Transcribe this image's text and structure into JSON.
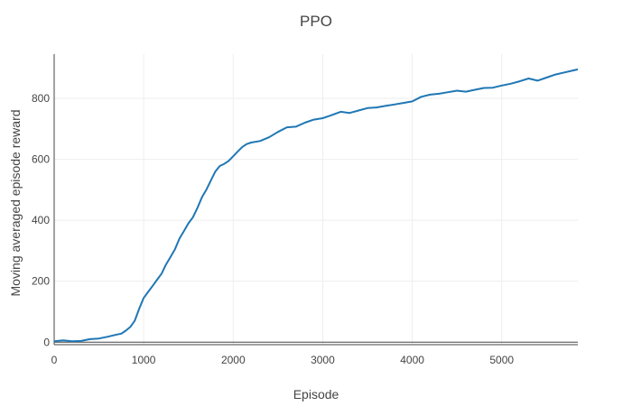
{
  "chart_data": {
    "type": "line",
    "title": "PPO",
    "xlabel": "Episode",
    "ylabel": "Moving averaged episode reward",
    "xlim": [
      0,
      5850
    ],
    "ylim": [
      -8,
      945
    ],
    "xticks": [
      0,
      1000,
      2000,
      3000,
      4000,
      5000
    ],
    "yticks": [
      0,
      200,
      400,
      600,
      800
    ],
    "grid": true,
    "legend": "none",
    "series": [
      {
        "color": "#1f77b4",
        "x": [
          0,
          100,
          200,
          300,
          400,
          500,
          600,
          700,
          750,
          800,
          850,
          900,
          950,
          1000,
          1050,
          1100,
          1150,
          1200,
          1250,
          1300,
          1350,
          1400,
          1450,
          1500,
          1550,
          1600,
          1650,
          1700,
          1750,
          1800,
          1850,
          1900,
          1950,
          2000,
          2050,
          2100,
          2150,
          2200,
          2300,
          2400,
          2500,
          2600,
          2700,
          2800,
          2900,
          3000,
          3100,
          3200,
          3300,
          3400,
          3500,
          3600,
          3700,
          3800,
          3900,
          4000,
          4100,
          4200,
          4300,
          4400,
          4500,
          4600,
          4700,
          4800,
          4900,
          5000,
          5100,
          5200,
          5300,
          5400,
          5500,
          5600,
          5700,
          5850
        ],
        "y": [
          3,
          6,
          3,
          4,
          10,
          12,
          18,
          25,
          28,
          38,
          50,
          70,
          110,
          145,
          165,
          185,
          205,
          225,
          255,
          280,
          305,
          340,
          365,
          390,
          410,
          440,
          475,
          500,
          530,
          560,
          578,
          585,
          595,
          610,
          625,
          640,
          650,
          655,
          660,
          672,
          690,
          705,
          707,
          720,
          730,
          735,
          745,
          756,
          752,
          760,
          768,
          770,
          775,
          780,
          785,
          790,
          805,
          812,
          815,
          820,
          825,
          822,
          828,
          834,
          835,
          842,
          848,
          856,
          865,
          858,
          868,
          878,
          885,
          895
        ]
      }
    ]
  }
}
